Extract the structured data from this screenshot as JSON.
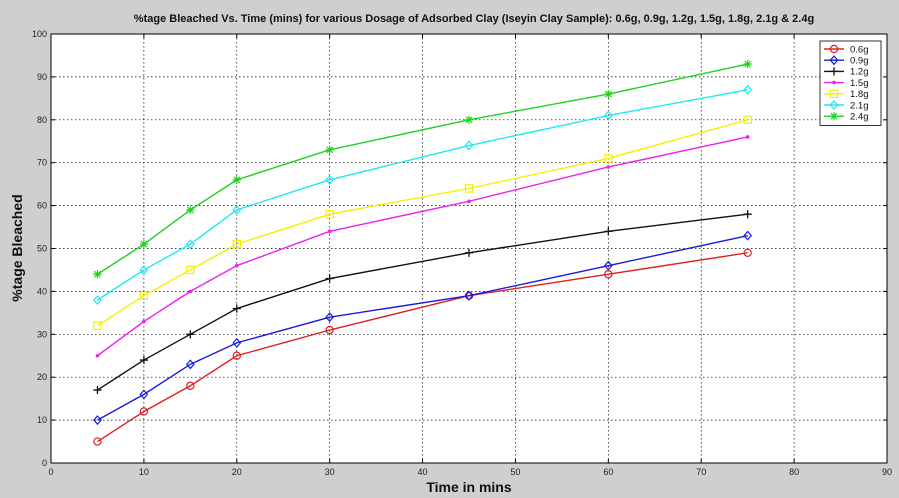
{
  "chart_data": {
    "type": "line",
    "title": "%tage Bleached Vs. Time (mins) for various Dosage of Adsorbed Clay (Iseyin Clay Sample): 0.6g, 0.9g, 1.2g, 1.5g, 1.8g, 2.1g & 2.4g",
    "xlabel": "Time in mins",
    "ylabel": "%tage Bleached",
    "xlim": [
      0,
      90
    ],
    "ylim": [
      0,
      100
    ],
    "xticks": [
      "0",
      "10",
      "20",
      "30",
      "40",
      "50",
      "60",
      "70",
      "80",
      "90"
    ],
    "yticks": [
      "0",
      "10",
      "20",
      "30",
      "40",
      "50",
      "60",
      "70",
      "80",
      "90",
      "100"
    ],
    "grid": true,
    "legend_position": "top-right",
    "x": [
      5,
      10,
      15,
      20,
      30,
      45,
      60,
      75
    ],
    "series": [
      {
        "name": "0.6g",
        "color": "#e02020",
        "marker": "circle",
        "values": [
          5,
          12,
          18,
          25,
          31,
          39,
          44,
          49
        ]
      },
      {
        "name": "0.9g",
        "color": "#1a1adc",
        "marker": "diamond",
        "values": [
          10,
          16,
          23,
          28,
          34,
          39,
          46,
          53
        ]
      },
      {
        "name": "1.2g",
        "color": "#111111",
        "marker": "plus",
        "values": [
          17,
          24,
          30,
          36,
          43,
          49,
          54,
          58
        ]
      },
      {
        "name": "1.5g",
        "color": "#ee20ee",
        "marker": "dot",
        "values": [
          25,
          33,
          40,
          46,
          54,
          61,
          69,
          76
        ]
      },
      {
        "name": "1.8g",
        "color": "#f2f200",
        "marker": "square",
        "values": [
          32,
          39,
          45,
          51,
          58,
          64,
          71,
          80
        ]
      },
      {
        "name": "2.1g",
        "color": "#20e8f0",
        "marker": "diamond",
        "values": [
          38,
          45,
          51,
          59,
          66,
          74,
          81,
          87
        ]
      },
      {
        "name": "2.4g",
        "color": "#20d020",
        "marker": "star",
        "values": [
          44,
          51,
          59,
          66,
          73,
          80,
          86,
          93
        ]
      }
    ]
  }
}
